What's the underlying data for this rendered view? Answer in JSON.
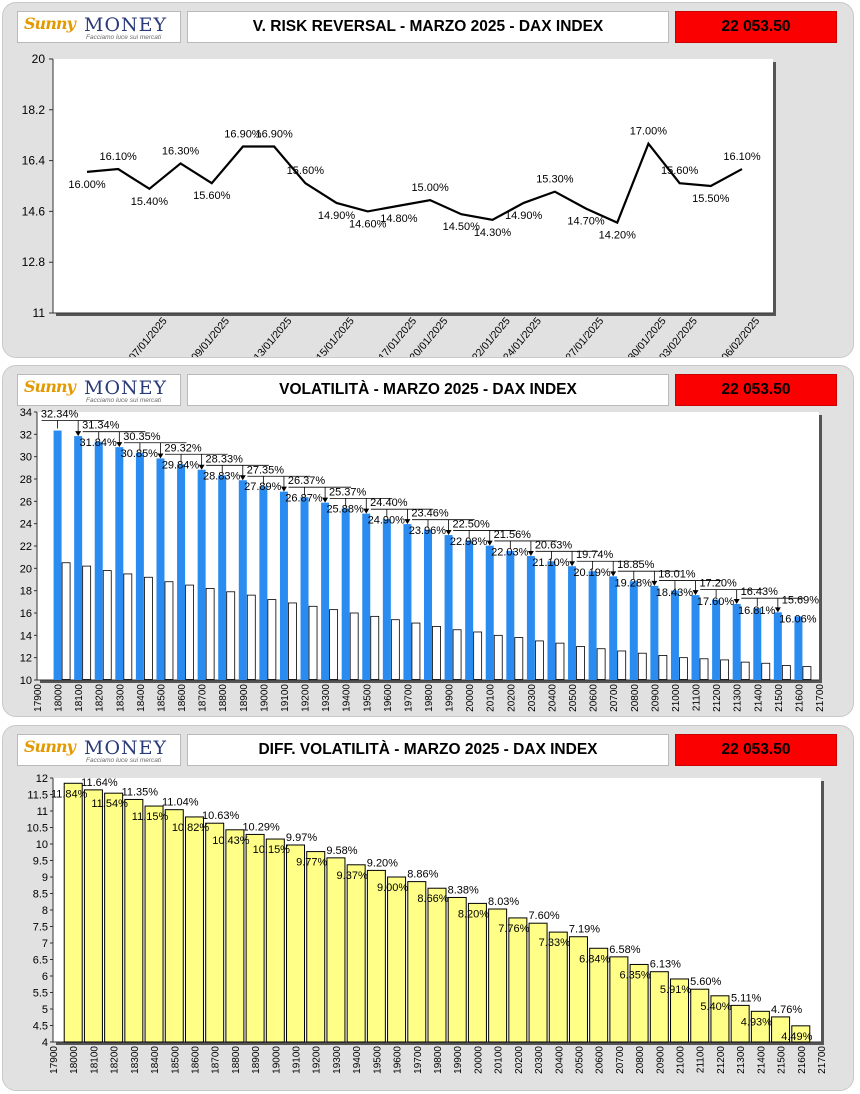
{
  "brand": {
    "sunny": "Sunny",
    "money": "MONEY",
    "tagline": "Facciamo luce sui mercati"
  },
  "price": "22 053.50",
  "charts": {
    "rr": {
      "title": "V. RISK REVERSAL - MARZO 2025 - DAX INDEX"
    },
    "vol": {
      "title": "VOLATILITÀ - MARZO 2025 - DAX INDEX"
    },
    "diff": {
      "title": "DIFF. VOLATILITÀ - MARZO 2025 - DAX INDEX"
    }
  },
  "chart_data": [
    {
      "id": "rr",
      "type": "line",
      "title": "V. RISK REVERSAL - MARZO 2025 - DAX INDEX",
      "ylim": [
        11,
        20
      ],
      "yticks": [
        11,
        12.8,
        14.6,
        16.4,
        18.2,
        20
      ],
      "ytick_labels": [
        "11",
        "12.8",
        "14.6",
        "16.4",
        "18.2",
        "20"
      ],
      "xtick_labels": [
        "07/01/2025",
        "09/01/2025",
        "13/01/2025",
        "15/01/2025",
        "17/01/2025",
        "20/01/2025",
        "22/01/2025",
        "24/01/2025",
        "27/01/2025",
        "30/01/2025",
        "03/02/2025",
        "06/02/2025"
      ],
      "xtick_index": [
        2,
        4,
        6,
        8,
        10,
        11,
        13,
        14,
        16,
        18,
        19,
        21
      ],
      "values": [
        16.0,
        16.1,
        15.4,
        16.3,
        15.6,
        16.9,
        16.9,
        15.6,
        14.9,
        14.6,
        14.8,
        15.0,
        14.5,
        14.3,
        14.9,
        15.3,
        14.7,
        14.2,
        17.0,
        15.6,
        15.5,
        16.1
      ],
      "labels": [
        "16.00%",
        "16.10%",
        "15.40%",
        "16.30%",
        "15.60%",
        "16.90%",
        "16.90%",
        "15.60%",
        "14.90%",
        "14.60%",
        "14.80%",
        "15.00%",
        "14.50%",
        "14.30%",
        "14.90%",
        "15.30%",
        "14.70%",
        "14.20%",
        "17.00%",
        "15.60%",
        "15.50%",
        "16.10%"
      ]
    },
    {
      "id": "vol",
      "type": "bar",
      "title": "VOLATILITÀ - MARZO 2025 - DAX INDEX",
      "ylim": [
        10,
        34
      ],
      "yticks": [
        10,
        12,
        14,
        16,
        18,
        20,
        22,
        24,
        26,
        28,
        30,
        32,
        34
      ],
      "xlim": [
        17900,
        21700
      ],
      "categories": [
        18000,
        18100,
        18200,
        18300,
        18400,
        18500,
        18600,
        18700,
        18800,
        18900,
        19000,
        19100,
        19200,
        19300,
        19400,
        19500,
        19600,
        19700,
        19800,
        19900,
        20000,
        20100,
        20200,
        20300,
        20400,
        20500,
        20600,
        20700,
        20800,
        20900,
        21000,
        21100,
        21200,
        21300,
        21400,
        21500,
        21600
      ],
      "series": [
        {
          "values": [
            32.34,
            31.84,
            31.34,
            30.85,
            30.35,
            29.84,
            29.32,
            28.83,
            28.33,
            27.89,
            27.35,
            26.87,
            26.37,
            25.88,
            25.37,
            24.9,
            24.4,
            23.96,
            23.46,
            22.98,
            22.5,
            22.03,
            21.56,
            21.1,
            20.63,
            20.19,
            19.74,
            19.28,
            18.85,
            18.43,
            18.01,
            17.6,
            17.2,
            16.81,
            16.43,
            16.06,
            15.69
          ]
        },
        {
          "values": [
            20.5,
            20.2,
            19.8,
            19.5,
            19.2,
            18.8,
            18.5,
            18.2,
            17.9,
            17.6,
            17.2,
            16.9,
            16.6,
            16.3,
            16.0,
            15.7,
            15.4,
            15.1,
            14.8,
            14.5,
            14.3,
            14.0,
            13.8,
            13.5,
            13.3,
            13.0,
            12.8,
            12.6,
            12.4,
            12.2,
            12.0,
            11.9,
            11.8,
            11.6,
            11.5,
            11.3,
            11.2
          ]
        }
      ],
      "labels": [
        "32.34%",
        "31.84%",
        "31.34%",
        "30.85%",
        "30.35%",
        "29.84%",
        "29.32%",
        "28.83%",
        "28.33%",
        "27.89%",
        "27.35%",
        "26.87%",
        "26.37%",
        "25.88%",
        "25.37%",
        "24.90%",
        "24.40%",
        "23.96%",
        "23.46%",
        "22.98%",
        "22.50%",
        "22.03%",
        "21.56%",
        "21.10%",
        "20.63%",
        "20.19%",
        "19.74%",
        "19.28%",
        "18.85%",
        "18.43%",
        "18.01%",
        "17.60%",
        "17.20%",
        "16.81%",
        "16.43%",
        "16.06%",
        "15.69%"
      ],
      "colors": {
        "series1": "#2a8cf0",
        "series2": "#ffffff"
      }
    },
    {
      "id": "diff",
      "type": "bar",
      "title": "DIFF. VOLATILITÀ - MARZO 2025 - DAX INDEX",
      "ylim": [
        4,
        12
      ],
      "yticks": [
        4,
        4.5,
        5,
        5.5,
        6,
        6.5,
        7,
        7.5,
        8,
        8.5,
        9,
        9.5,
        10,
        10.5,
        11,
        11.5,
        12
      ],
      "xlim": [
        17900,
        21700
      ],
      "categories": [
        18000,
        18100,
        18200,
        18300,
        18400,
        18500,
        18600,
        18700,
        18800,
        18900,
        19000,
        19100,
        19200,
        19300,
        19400,
        19500,
        19600,
        19700,
        19800,
        19900,
        20000,
        20100,
        20200,
        20300,
        20400,
        20500,
        20600,
        20700,
        20800,
        20900,
        21000,
        21100,
        21200,
        21300,
        21400,
        21500,
        21600
      ],
      "values": [
        11.84,
        11.64,
        11.54,
        11.35,
        11.15,
        11.04,
        10.82,
        10.63,
        10.43,
        10.29,
        10.15,
        9.97,
        9.77,
        9.58,
        9.37,
        9.2,
        9.0,
        8.86,
        8.66,
        8.38,
        8.2,
        8.03,
        7.76,
        7.6,
        7.33,
        7.19,
        6.84,
        6.58,
        6.35,
        6.13,
        5.91,
        5.6,
        5.4,
        5.11,
        4.93,
        4.76,
        4.49
      ],
      "labels": [
        "11.84%",
        "11.64%",
        "11.54%",
        "11.35%",
        "11.15%",
        "11.04%",
        "10.82%",
        "10.63%",
        "10.43%",
        "10.29%",
        "10.15%",
        "9.97%",
        "9.77%",
        "9.58%",
        "9.37%",
        "9.20%",
        "9.00%",
        "8.86%",
        "8.66%",
        "8.38%",
        "8.20%",
        "8.03%",
        "7.76%",
        "7.60%",
        "7.33%",
        "7.19%",
        "6.84%",
        "6.58%",
        "6.35%",
        "6.13%",
        "5.91%",
        "5.60%",
        "5.40%",
        "5.11%",
        "4.93%",
        "4.76%",
        "4.49%"
      ],
      "colors": {
        "bar": "#ffff88"
      }
    }
  ]
}
